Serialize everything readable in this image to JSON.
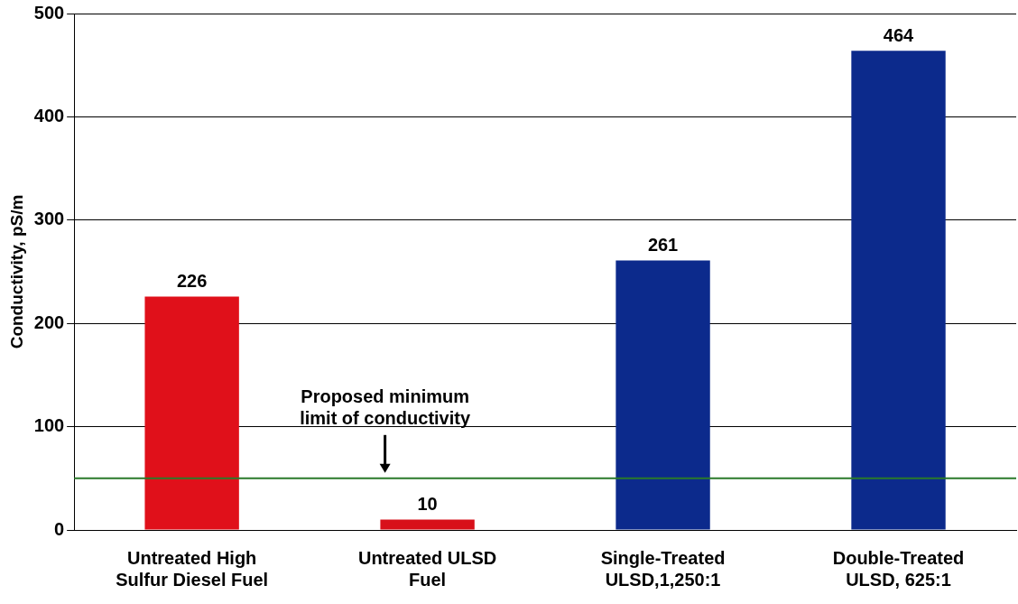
{
  "chart_data": {
    "type": "bar",
    "categories": [
      "Untreated High Sulfur Diesel Fuel",
      "Untreated ULSD Fuel",
      "Single-Treated ULSD,1,250:1",
      "Double-Treated ULSD, 625:1"
    ],
    "values": [
      226,
      10,
      261,
      464
    ],
    "colors": [
      "#e0101a",
      "#d8101a",
      "#0c2a8c",
      "#0c2a8c"
    ],
    "ylabel": "Conductivity, pS/m",
    "ylim": [
      0,
      500
    ],
    "yticks": [
      0,
      100,
      200,
      300,
      400,
      500
    ],
    "grid": "y",
    "legend": false,
    "data_labels": true,
    "ref_lines": [
      {
        "axis": "y",
        "value": 50,
        "label": "Proposed minimum limit of conductivity",
        "color": "#2a7a2a"
      }
    ]
  }
}
